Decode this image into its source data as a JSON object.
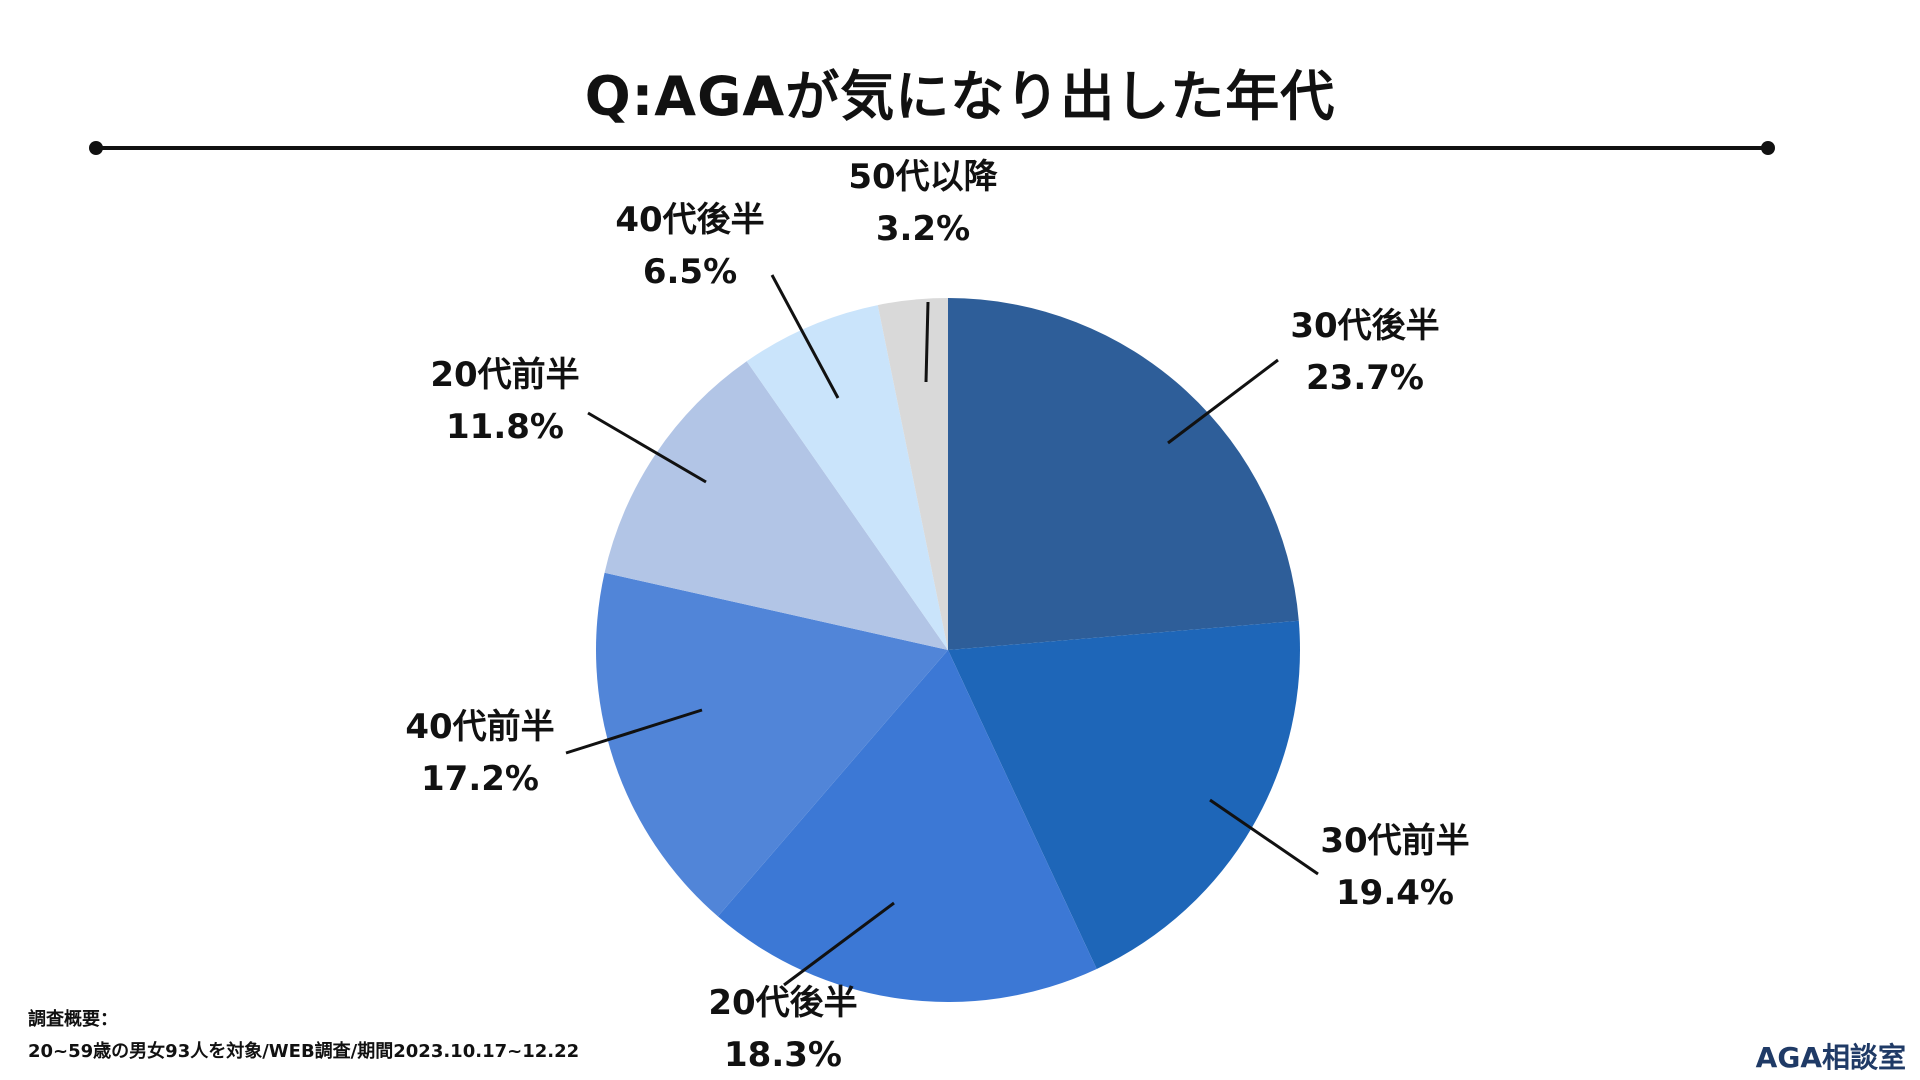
{
  "header": {
    "title": "Q:AGAが気になり出した年代"
  },
  "chart_data": {
    "type": "pie",
    "title": "Q:AGAが気になり出した年代",
    "slices": [
      {
        "label": "30代後半",
        "value": 23.7,
        "value_label": "23.7%",
        "color": "#2e5e99"
      },
      {
        "label": "30代前半",
        "value": 19.4,
        "value_label": "19.4%",
        "color": "#1e66b8"
      },
      {
        "label": "20代後半",
        "value": 18.3,
        "value_label": "18.3%",
        "color": "#3c78d5"
      },
      {
        "label": "40代前半",
        "value": 17.2,
        "value_label": "17.2%",
        "color": "#5185d8"
      },
      {
        "label": "20代前半",
        "value": 11.8,
        "value_label": "11.8%",
        "color": "#b2c5e6"
      },
      {
        "label": "40代後半",
        "value": 6.5,
        "value_label": "6.5%",
        "color": "#cae4fb"
      },
      {
        "label": "50代以降",
        "value": 3.2,
        "value_label": "3.2%",
        "color": "#d9d9d9"
      }
    ],
    "start": "12 o'clock",
    "direction": "clockwise",
    "legend": "none"
  },
  "footnote": {
    "line1": "調査概要：",
    "line2": "20~59歳の男女93人を対象/WEB調査/期間2023.10.17~12.22"
  },
  "brand": "AGA相談室"
}
